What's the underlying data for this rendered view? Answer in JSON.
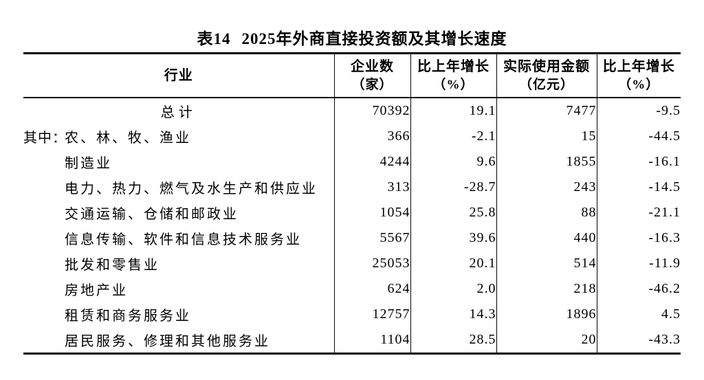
{
  "colors": {
    "background": "#ffffff",
    "text": "#000000",
    "rule": "#000000"
  },
  "title": {
    "table_no": "表14",
    "text": "2025年外商直接投资额及其增长速度"
  },
  "table": {
    "columns": [
      {
        "label": "行业",
        "unit": ""
      },
      {
        "label": "企业数",
        "unit": "（家）"
      },
      {
        "label": "比上年增长",
        "unit": "（%）"
      },
      {
        "label": "实际使用金额",
        "unit": "（亿元）"
      },
      {
        "label": "比上年增长",
        "unit": "（%）"
      }
    ],
    "rows": [
      {
        "prefix": "",
        "label": "总计",
        "enterprises": "70392",
        "enterprises_growth": "19.1",
        "amount": "7477",
        "amount_growth": "-9.5"
      },
      {
        "prefix": "其中：",
        "label": "农、林、牧、渔业",
        "enterprises": "366",
        "enterprises_growth": "-2.1",
        "amount": "15",
        "amount_growth": "-44.5"
      },
      {
        "prefix": "",
        "label": "制造业",
        "enterprises": "4244",
        "enterprises_growth": "9.6",
        "amount": "1855",
        "amount_growth": "-16.1"
      },
      {
        "prefix": "",
        "label": "电力、热力、燃气及水生产和供应业",
        "enterprises": "313",
        "enterprises_growth": "-28.7",
        "amount": "243",
        "amount_growth": "-14.5"
      },
      {
        "prefix": "",
        "label": "交通运输、仓储和邮政业",
        "enterprises": "1054",
        "enterprises_growth": "25.8",
        "amount": "88",
        "amount_growth": "-21.1"
      },
      {
        "prefix": "",
        "label": "信息传输、软件和信息技术服务业",
        "enterprises": "5567",
        "enterprises_growth": "39.6",
        "amount": "440",
        "amount_growth": "-16.3"
      },
      {
        "prefix": "",
        "label": "批发和零售业",
        "enterprises": "25053",
        "enterprises_growth": "20.1",
        "amount": "514",
        "amount_growth": "-11.9"
      },
      {
        "prefix": "",
        "label": "房地产业",
        "enterprises": "624",
        "enterprises_growth": "2.0",
        "amount": "218",
        "amount_growth": "-46.2"
      },
      {
        "prefix": "",
        "label": "租赁和商务服务业",
        "enterprises": "12757",
        "enterprises_growth": "14.3",
        "amount": "1896",
        "amount_growth": "4.5"
      },
      {
        "prefix": "",
        "label": "居民服务、修理和其他服务业",
        "enterprises": "1104",
        "enterprises_growth": "28.5",
        "amount": "20",
        "amount_growth": "-43.3"
      }
    ]
  }
}
